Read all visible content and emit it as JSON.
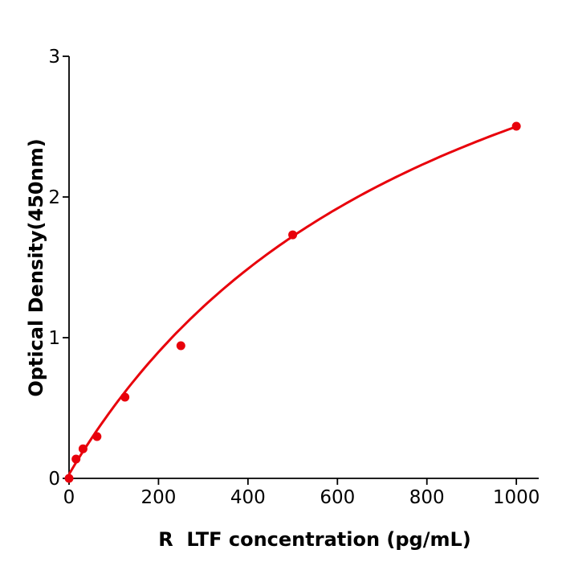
{
  "chart_data": {
    "type": "scatter",
    "title": "",
    "xlabel": "R  LTF concentration (pg/mL)",
    "ylabel": "Optical Density(450nm)",
    "xlim": [
      0,
      1050
    ],
    "ylim": [
      0,
      3
    ],
    "xticks": [
      "0",
      "200",
      "400",
      "600",
      "800",
      "1000"
    ],
    "yticks": [
      "0",
      "1",
      "2",
      "3"
    ],
    "grid": false,
    "color": "#e8000b",
    "series": [
      {
        "x": [
          0,
          15.6,
          31.25,
          62.5,
          125,
          250,
          500,
          1000
        ],
        "y": [
          0.0,
          0.137,
          0.21,
          0.297,
          0.577,
          0.943,
          1.731,
          2.503
        ]
      }
    ],
    "fit_line": true
  }
}
